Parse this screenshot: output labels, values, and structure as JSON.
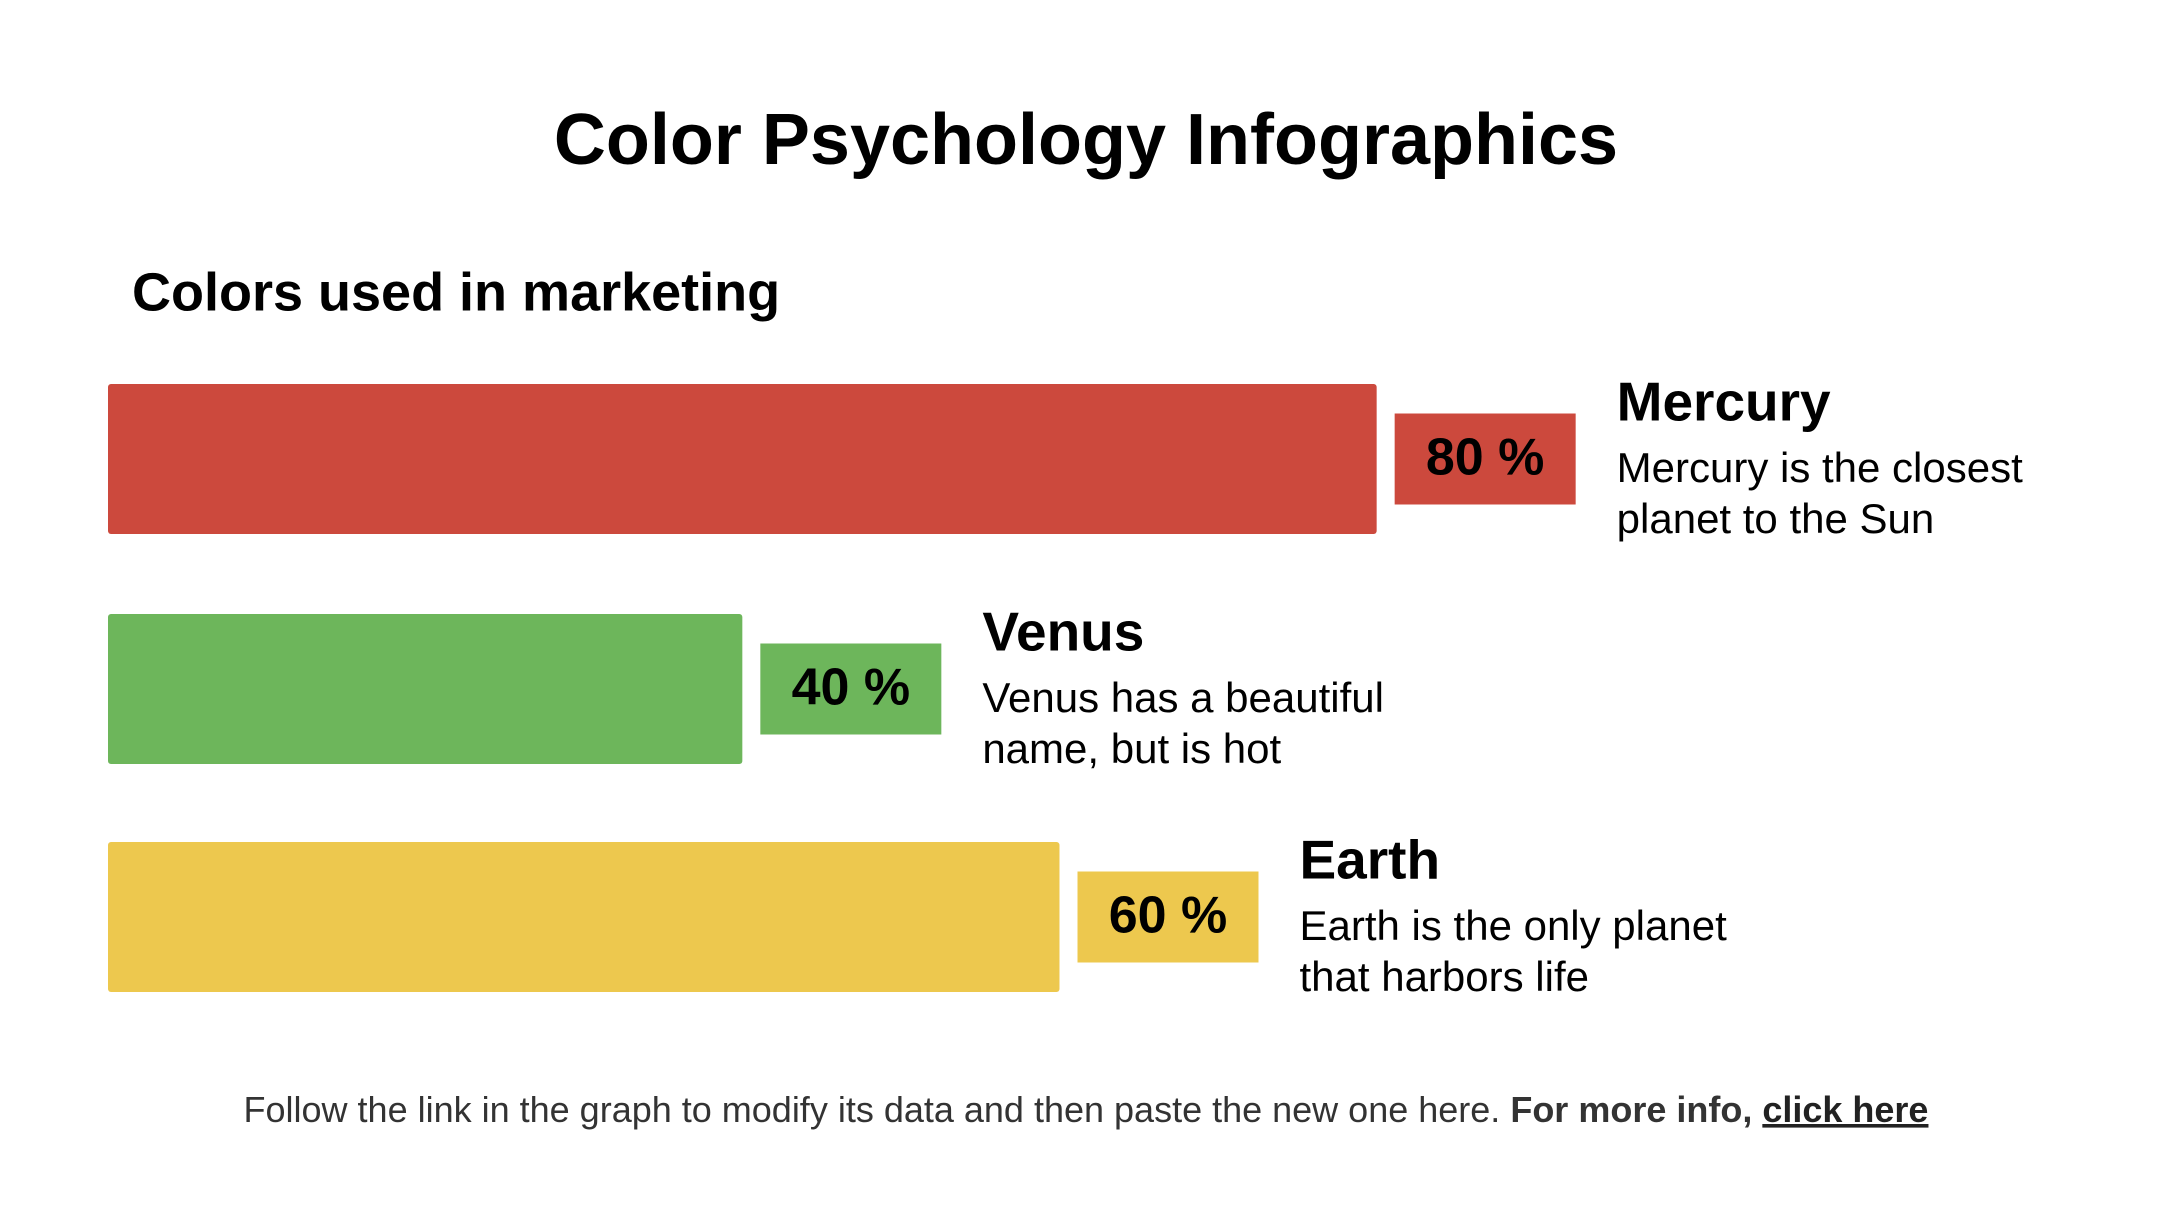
{
  "chart_data": {
    "type": "bar",
    "title": "Color Psychology Infographics",
    "subtitle": "Colors used in marketing",
    "categories": [
      "Mercury",
      "Venus",
      "Earth"
    ],
    "descriptions": [
      [
        "Mercury is the closest",
        "planet to the Sun"
      ],
      [
        "Venus has a beautiful",
        "name, but is hot"
      ],
      [
        "Earth is the only planet",
        "that harbors life"
      ]
    ],
    "values": [
      80,
      40,
      60
    ],
    "value_labels": [
      "80 %",
      "40 %",
      "60 %"
    ],
    "colors": [
      "#cc493d",
      "#6db65b",
      "#edc84e"
    ]
  },
  "footer": {
    "text": "Follow the link in the graph to modify its data and then paste the new one here.",
    "bold": "For more info,",
    "link": "click here"
  }
}
